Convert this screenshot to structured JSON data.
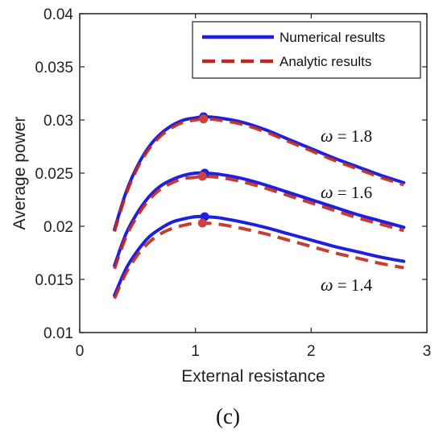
{
  "chart_data": {
    "type": "line",
    "xlabel": "External resistance",
    "ylabel": "Average power",
    "xlim": [
      0,
      3
    ],
    "ylim": [
      0.01,
      0.04
    ],
    "xticks": [
      "0",
      "1",
      "2",
      "3"
    ],
    "yticks": [
      "0.01",
      "0.015",
      "0.02",
      "0.025",
      "0.03",
      "0.035",
      "0.04"
    ],
    "legend": {
      "position": "top-right",
      "entries": [
        {
          "label": "Numerical results",
          "color": "#1f1fe0",
          "style": "solid"
        },
        {
          "label": "Analytic results",
          "color": "#c0281e",
          "style": "dashed"
        }
      ]
    },
    "omega_labels": [
      "ω = 1.8",
      "ω = 1.6",
      "ω = 1.4"
    ],
    "panel_label": "(c)",
    "series": [
      {
        "group": "ω = 1.8",
        "kind": "numerical",
        "x": [
          0.3,
          0.4,
          0.5,
          0.6,
          0.7,
          0.8,
          0.9,
          1.0,
          1.07,
          1.2,
          1.4,
          1.6,
          1.8,
          2.0,
          2.2,
          2.4,
          2.6,
          2.8
        ],
        "y": [
          0.0197,
          0.0232,
          0.0257,
          0.0275,
          0.0287,
          0.0295,
          0.03,
          0.0302,
          0.0303,
          0.0302,
          0.0298,
          0.0291,
          0.0282,
          0.0273,
          0.0264,
          0.0256,
          0.0248,
          0.0241
        ]
      },
      {
        "group": "ω = 1.8",
        "kind": "analytic",
        "x": [
          0.3,
          0.4,
          0.5,
          0.6,
          0.7,
          0.8,
          0.9,
          1.0,
          1.07,
          1.2,
          1.4,
          1.6,
          1.8,
          2.0,
          2.2,
          2.4,
          2.6,
          2.8
        ],
        "y": [
          0.0195,
          0.023,
          0.0255,
          0.0273,
          0.0285,
          0.0293,
          0.0298,
          0.03,
          0.0301,
          0.03,
          0.0296,
          0.0289,
          0.028,
          0.0271,
          0.0262,
          0.0254,
          0.0246,
          0.0239
        ]
      },
      {
        "group": "ω = 1.6",
        "kind": "numerical",
        "x": [
          0.3,
          0.4,
          0.5,
          0.6,
          0.7,
          0.8,
          0.9,
          1.0,
          1.08,
          1.2,
          1.4,
          1.6,
          1.8,
          2.0,
          2.2,
          2.4,
          2.6,
          2.8
        ],
        "y": [
          0.0163,
          0.0193,
          0.0213,
          0.0228,
          0.0238,
          0.0244,
          0.0248,
          0.025,
          0.025,
          0.0249,
          0.0245,
          0.0239,
          0.0232,
          0.0225,
          0.0218,
          0.0211,
          0.0205,
          0.0199
        ]
      },
      {
        "group": "ω = 1.6",
        "kind": "analytic",
        "x": [
          0.3,
          0.4,
          0.5,
          0.6,
          0.7,
          0.8,
          0.9,
          1.0,
          1.06,
          1.2,
          1.4,
          1.6,
          1.8,
          2.0,
          2.2,
          2.4,
          2.6,
          2.8
        ],
        "y": [
          0.016,
          0.019,
          0.021,
          0.0225,
          0.0235,
          0.0241,
          0.0245,
          0.0246,
          0.0247,
          0.0246,
          0.0242,
          0.0236,
          0.0229,
          0.0222,
          0.0215,
          0.0208,
          0.0202,
          0.0196
        ]
      },
      {
        "group": "ω = 1.4",
        "kind": "numerical",
        "x": [
          0.3,
          0.4,
          0.5,
          0.6,
          0.7,
          0.8,
          0.9,
          1.0,
          1.08,
          1.2,
          1.4,
          1.6,
          1.8,
          2.0,
          2.2,
          2.4,
          2.6,
          2.8
        ],
        "y": [
          0.0135,
          0.016,
          0.0177,
          0.019,
          0.0198,
          0.0204,
          0.0207,
          0.0209,
          0.0209,
          0.0208,
          0.0204,
          0.0199,
          0.0193,
          0.0187,
          0.0181,
          0.0176,
          0.0171,
          0.0167
        ]
      },
      {
        "group": "ω = 1.4",
        "kind": "analytic",
        "x": [
          0.3,
          0.4,
          0.5,
          0.6,
          0.7,
          0.8,
          0.9,
          1.0,
          1.06,
          1.2,
          1.4,
          1.6,
          1.8,
          2.0,
          2.2,
          2.4,
          2.6,
          2.8
        ],
        "y": [
          0.0132,
          0.0156,
          0.0173,
          0.0185,
          0.0193,
          0.0198,
          0.0201,
          0.0203,
          0.0203,
          0.0202,
          0.0198,
          0.0193,
          0.0187,
          0.0181,
          0.0175,
          0.017,
          0.0165,
          0.0161
        ]
      }
    ],
    "peak_markers": [
      {
        "x": 1.07,
        "y": 0.0303,
        "color": "#1f1fe0"
      },
      {
        "x": 1.07,
        "y": 0.0301,
        "color": "#d04040"
      },
      {
        "x": 1.08,
        "y": 0.025,
        "color": "#1f1fe0"
      },
      {
        "x": 1.06,
        "y": 0.0247,
        "color": "#d04040"
      },
      {
        "x": 1.08,
        "y": 0.0209,
        "color": "#1f1fe0"
      },
      {
        "x": 1.06,
        "y": 0.0203,
        "color": "#d04040"
      }
    ]
  }
}
